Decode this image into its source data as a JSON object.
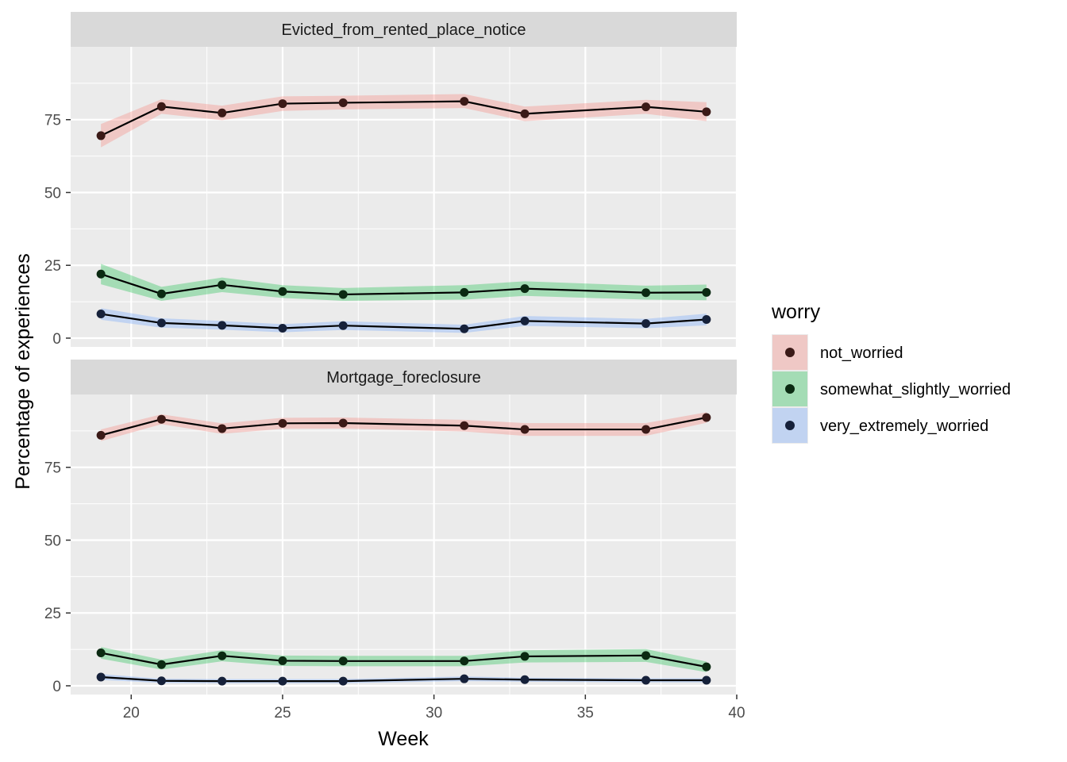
{
  "chart_data": {
    "type": "line",
    "xlabel": "Week",
    "ylabel": "Percentage of experiences",
    "xlim": [
      18,
      40
    ],
    "ylim": [
      -3,
      100
    ],
    "x_ticks": [
      "20",
      "25",
      "30",
      "35",
      "40"
    ],
    "y_ticks": [
      "0",
      "25",
      "50",
      "75"
    ],
    "grid": true,
    "legend": {
      "title": "worry",
      "position": "right",
      "entries": [
        {
          "key": "not_worried",
          "label": "not_worried",
          "ribbon_color": "#f8766d",
          "point_color": "#3b1a17"
        },
        {
          "key": "somewhat_slightly_worried",
          "label": "somewhat_slightly_worried",
          "ribbon_color": "#00ba38",
          "point_color": "#0b2a12"
        },
        {
          "key": "very_extremely_worried",
          "label": "very_extremely_worried",
          "ribbon_color": "#619cff",
          "point_color": "#16213a"
        }
      ]
    },
    "x": [
      19,
      21,
      23,
      25,
      27,
      31,
      33,
      37,
      39
    ],
    "facets": [
      {
        "label": "Evicted_from_rented_place_notice",
        "series": [
          {
            "key": "not_worried",
            "values": [
              69.5,
              79.5,
              77.3,
              80.5,
              80.8,
              81.3,
              77.0,
              79.4,
              77.7
            ],
            "lower": [
              65.5,
              77.0,
              74.8,
              78.0,
              78.5,
              79.0,
              74.5,
              77.0,
              74.5
            ],
            "upper": [
              73.5,
              82.0,
              79.8,
              83.0,
              83.2,
              83.8,
              79.5,
              81.8,
              81.0
            ]
          },
          {
            "key": "somewhat_slightly_worried",
            "values": [
              22.0,
              15.2,
              18.3,
              16.0,
              15.0,
              15.7,
              17.0,
              15.6,
              15.7
            ],
            "lower": [
              18.5,
              12.8,
              15.8,
              13.8,
              12.8,
              13.2,
              14.5,
              13.2,
              13.0
            ],
            "upper": [
              25.5,
              17.6,
              20.8,
              18.2,
              17.2,
              18.2,
              19.5,
              18.0,
              18.4
            ]
          },
          {
            "key": "very_extremely_worried",
            "values": [
              8.3,
              5.2,
              4.4,
              3.4,
              4.3,
              3.2,
              5.9,
              5.0,
              6.4
            ],
            "lower": [
              6.3,
              3.6,
              2.9,
              2.0,
              2.8,
              1.8,
              4.2,
              3.4,
              4.4
            ],
            "upper": [
              10.3,
              6.8,
              5.9,
              4.8,
              5.8,
              4.6,
              7.6,
              6.6,
              8.4
            ]
          }
        ]
      },
      {
        "label": "Mortgage_foreclosure",
        "series": [
          {
            "key": "not_worried",
            "values": [
              86.0,
              91.5,
              88.3,
              90.1,
              90.2,
              89.3,
              88.0,
              88.0,
              92.1
            ],
            "lower": [
              84.0,
              89.8,
              86.5,
              88.2,
              88.3,
              87.3,
              85.8,
              85.8,
              90.3
            ],
            "upper": [
              88.0,
              93.2,
              90.1,
              92.0,
              92.1,
              91.3,
              90.2,
              90.2,
              93.9
            ]
          },
          {
            "key": "somewhat_slightly_worried",
            "values": [
              11.3,
              7.3,
              10.3,
              8.6,
              8.5,
              8.5,
              10.1,
              10.4,
              6.5
            ],
            "lower": [
              9.3,
              5.6,
              8.4,
              6.8,
              6.7,
              6.7,
              8.0,
              8.2,
              4.7
            ],
            "upper": [
              13.3,
              9.0,
              12.2,
              10.4,
              10.3,
              10.3,
              12.2,
              12.6,
              8.3
            ]
          },
          {
            "key": "very_extremely_worried",
            "values": [
              3.0,
              1.7,
              1.6,
              1.6,
              1.6,
              2.4,
              2.1,
              1.9,
              1.9
            ],
            "lower": [
              2.0,
              1.0,
              0.9,
              0.9,
              0.9,
              1.6,
              1.4,
              1.2,
              1.2
            ],
            "upper": [
              4.0,
              2.4,
              2.3,
              2.3,
              2.3,
              3.2,
              2.8,
              2.6,
              2.6
            ]
          }
        ]
      }
    ]
  }
}
